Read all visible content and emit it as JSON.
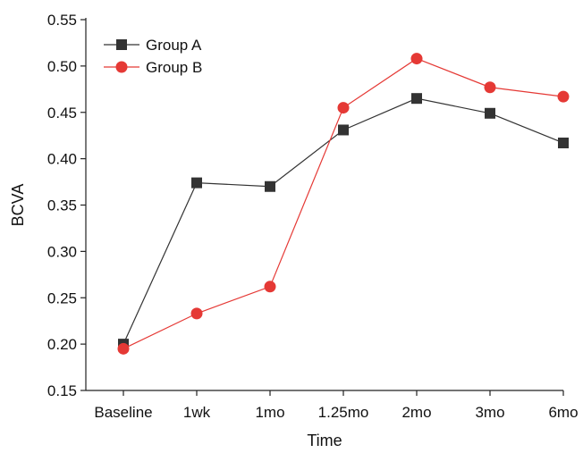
{
  "chart_data": {
    "type": "line",
    "categories": [
      "Baseline",
      "1wk",
      "1mo",
      "1.25mo",
      "2mo",
      "3mo",
      "6mo"
    ],
    "xlabel": "Time",
    "ylabel": "BCVA",
    "ylim": [
      0.15,
      0.55
    ],
    "yticks": [
      "0.15",
      "0.20",
      "0.25",
      "0.30",
      "0.35",
      "0.40",
      "0.45",
      "0.50",
      "0.55"
    ],
    "grid": false,
    "legend_position": "top-left",
    "series": [
      {
        "name": "Group A",
        "color": "#333333",
        "marker": "square",
        "values": [
          0.2,
          0.374,
          0.37,
          0.431,
          0.465,
          0.449,
          0.417
        ]
      },
      {
        "name": "Group B",
        "color": "#e53935",
        "marker": "circle",
        "values": [
          0.195,
          0.233,
          0.262,
          0.455,
          0.508,
          0.477,
          0.467
        ]
      }
    ]
  }
}
